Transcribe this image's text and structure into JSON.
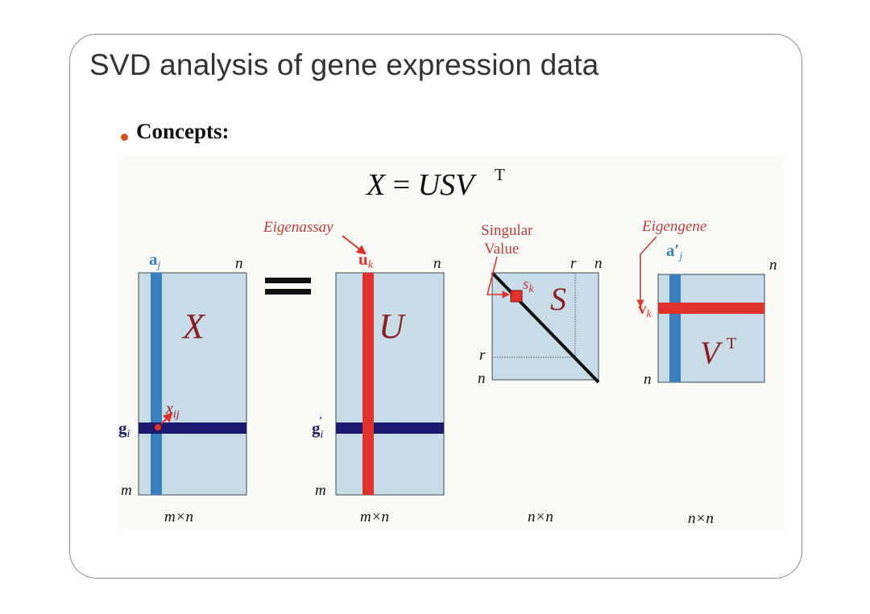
{
  "slide": {
    "title": "SVD analysis of gene expression data",
    "bullet_label": "Concepts:"
  },
  "figure": {
    "equation": {
      "lhs": "X",
      "eq": " = ",
      "rhs": "USV",
      "sup": "T"
    },
    "labels": {
      "eigenassay": "Eigenassay",
      "singular_line1": "Singular",
      "singular_line2": "Value",
      "eigengene": "Eigengene",
      "a_j": "a",
      "j": "j",
      "n": "n",
      "m": "m",
      "r": "r",
      "u_k": "u",
      "k": "k",
      "g_i": "g",
      "i": "i",
      "g_i_prime": "g",
      "prime": "′",
      "x_ij": "x",
      "ij": "ij",
      "s_k": "s",
      "a_prime_j": "a′",
      "v_k": "v",
      "X": "X",
      "U": "U",
      "S": "S",
      "V": "V",
      "T": "T",
      "dim_mn": "m×n",
      "dim_nn": "n×n"
    },
    "colors": {
      "matrix_fill": "#c8dce8",
      "column_blue": "#3a7fc0",
      "row_navy": "#1c1a6e",
      "highlight_red": "#e0322a",
      "annotation_red": "#c43a3a",
      "matrix_letter": "#8b1e1e",
      "label_blue": "#3a7fc0"
    }
  }
}
